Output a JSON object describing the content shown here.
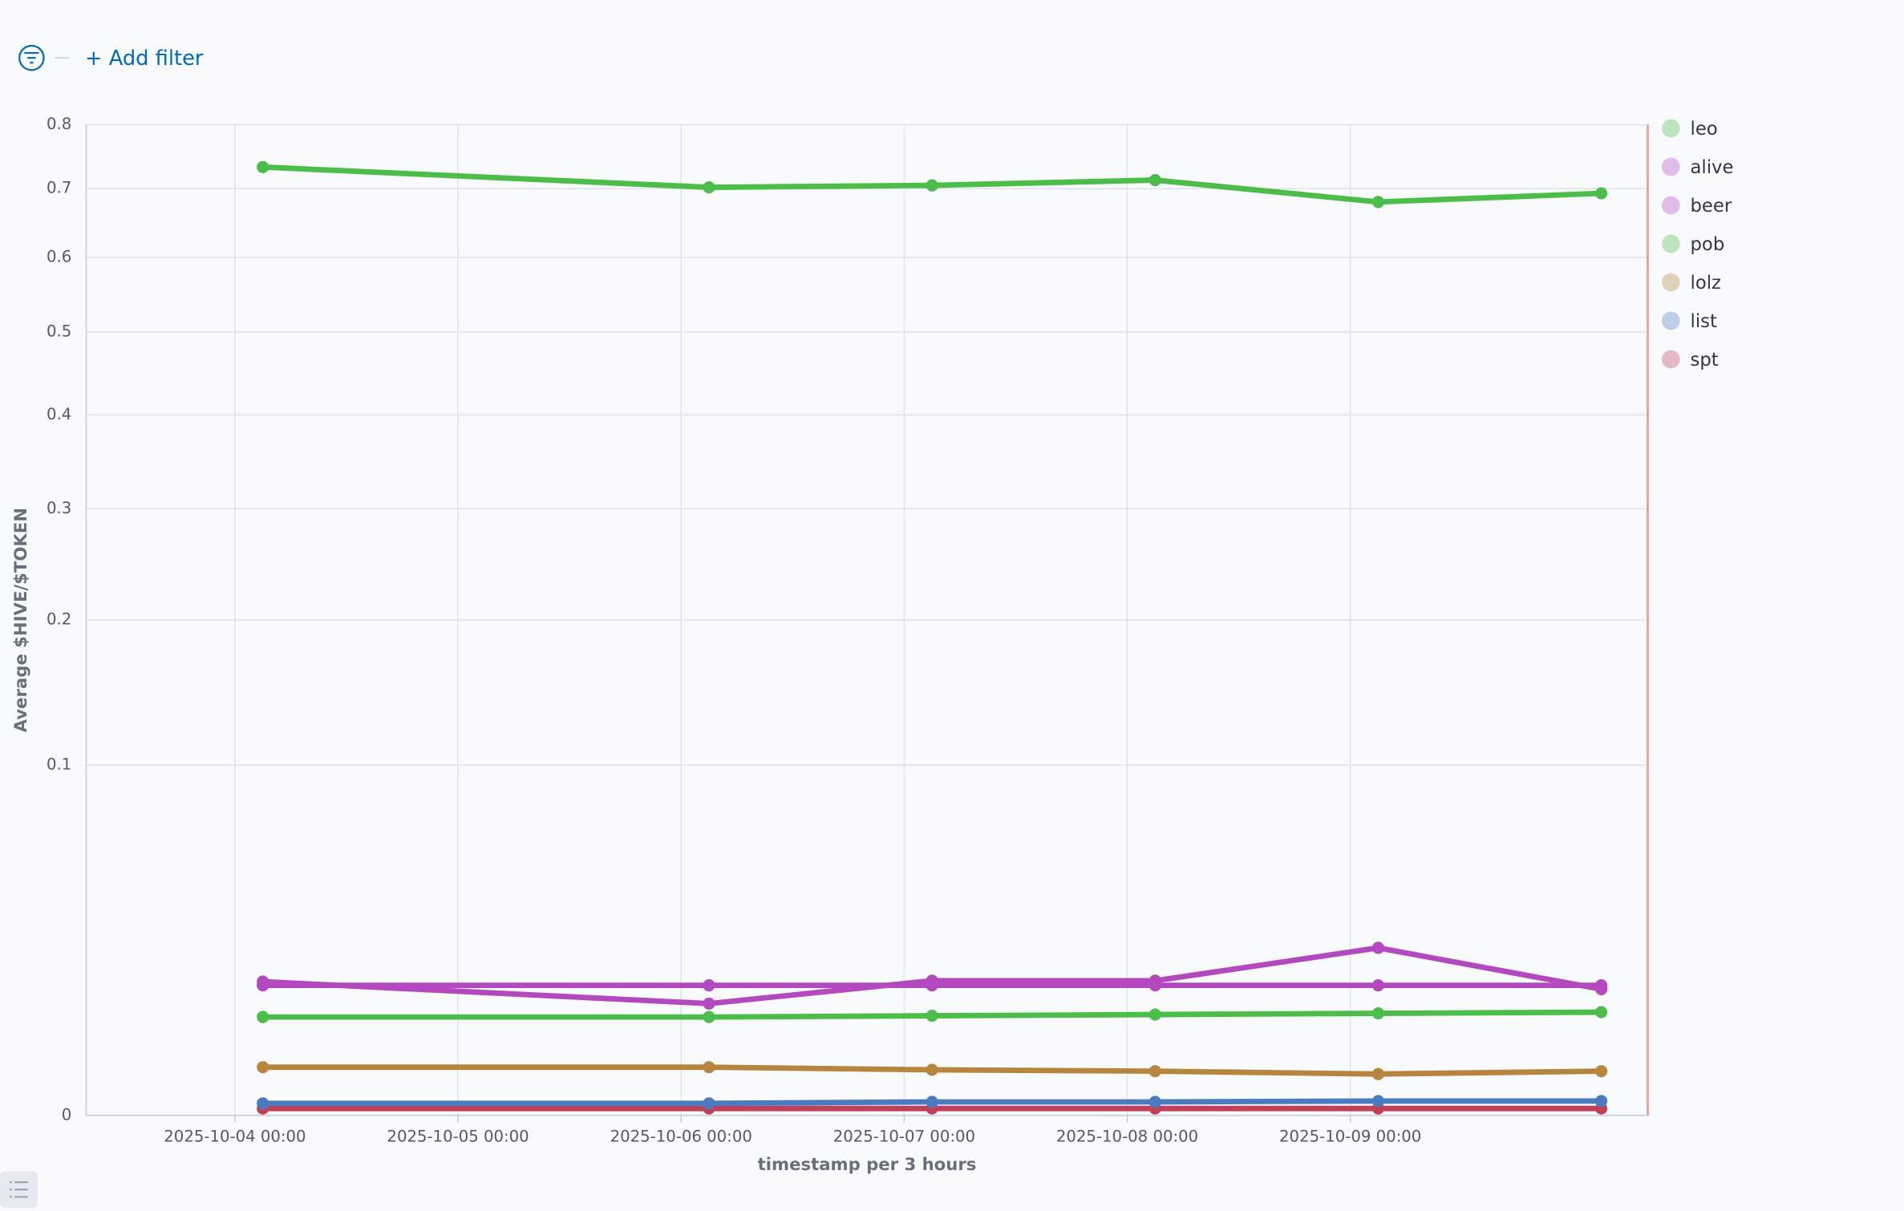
{
  "filter_bar": {
    "add_filter": "+ Add filter"
  },
  "chart_data": {
    "type": "line",
    "y_label": "Average $HIVE/$TOKEN",
    "x_label": "timestamp per 3 hours",
    "scale": "sqrt",
    "grid": true,
    "legend": "right",
    "x": [
      "2025-10-04 03:00",
      "2025-10-06 03:00",
      "2025-10-07 03:00",
      "2025-10-08 03:00",
      "2025-10-09 03:00",
      "2025-10-10 03:00"
    ],
    "xlim": [
      "2025-10-03 08:00",
      "2025-10-10 08:00"
    ],
    "xticks": [
      "2025-10-04 00:00",
      "2025-10-05 00:00",
      "2025-10-06 00:00",
      "2025-10-07 00:00",
      "2025-10-08 00:00",
      "2025-10-09 00:00"
    ],
    "ylim": [
      0,
      0.8
    ],
    "yticks": [
      0,
      0.1,
      0.2,
      0.3,
      0.4,
      0.5,
      0.6,
      0.7,
      0.8
    ],
    "series": [
      {
        "name": "leo",
        "color": "#4cbd48",
        "values": [
          0.733,
          0.702,
          0.705,
          0.713,
          0.68,
          0.693
        ]
      },
      {
        "name": "alive",
        "color": "#b348bf",
        "values": [
          0.0146,
          0.0102,
          0.0148,
          0.0148,
          0.0229,
          0.013
        ]
      },
      {
        "name": "beer",
        "color": "#b348bf",
        "values": [
          0.0138,
          0.0138,
          0.0138,
          0.0138,
          0.0138,
          0.0138
        ]
      },
      {
        "name": "pob",
        "color": "#4cbd48",
        "values": [
          0.0079,
          0.0079,
          0.0081,
          0.0083,
          0.0085,
          0.0087
        ]
      },
      {
        "name": "lolz",
        "color": "#b8853f",
        "values": [
          0.0019,
          0.0019,
          0.0017,
          0.0016,
          0.0014,
          0.0016
        ]
      },
      {
        "name": "list",
        "color": "#4a7bc0",
        "values": [
          0.00012,
          0.00012,
          0.00015,
          0.00015,
          0.00017,
          0.00017
        ]
      },
      {
        "name": "spt",
        "color": "#c0405a",
        "values": [
          4e-05,
          4e-05,
          4e-05,
          4e-05,
          4e-05,
          4e-05
        ]
      }
    ]
  }
}
